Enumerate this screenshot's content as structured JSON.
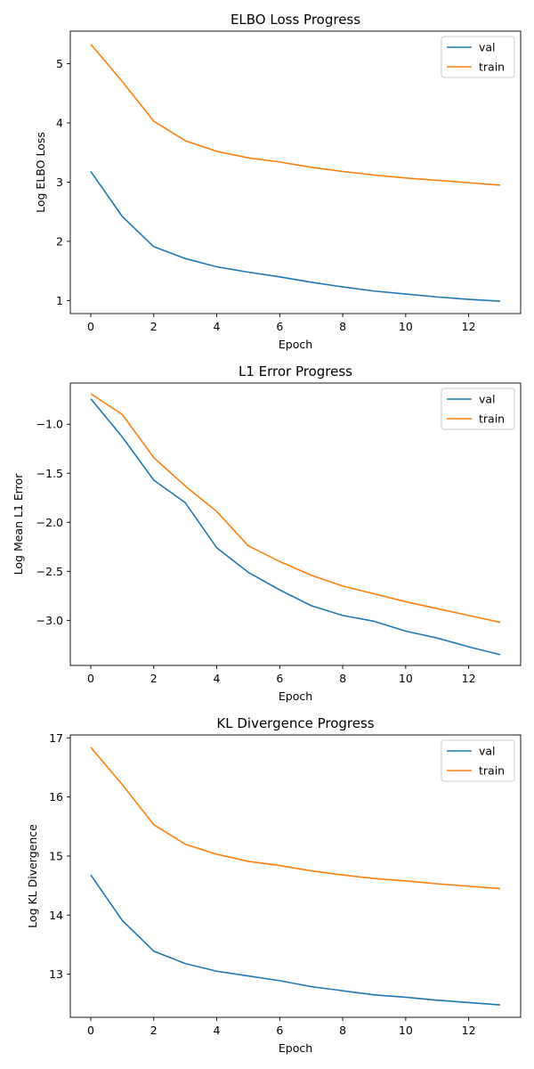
{
  "chart_data": [
    {
      "type": "line",
      "title": "ELBO Loss Progress",
      "xlabel": "Epoch",
      "ylabel": "Log ELBO Loss",
      "x": [
        0,
        1,
        2,
        3,
        4,
        5,
        6,
        7,
        8,
        9,
        10,
        11,
        12,
        13
      ],
      "xlim": [
        -0.65,
        13.65
      ],
      "ylim": [
        0.78,
        5.55
      ],
      "xticks": [
        0,
        2,
        4,
        6,
        8,
        10,
        12
      ],
      "yticks": [
        1,
        2,
        3,
        4,
        5
      ],
      "legend": "top-right",
      "series": [
        {
          "name": "val",
          "color": "#1f77b4",
          "values": [
            3.18,
            2.42,
            1.91,
            1.71,
            1.57,
            1.48,
            1.4,
            1.31,
            1.23,
            1.16,
            1.11,
            1.06,
            1.02,
            0.99
          ]
        },
        {
          "name": "train",
          "color": "#ff7f0e",
          "values": [
            5.33,
            4.7,
            4.03,
            3.7,
            3.52,
            3.41,
            3.34,
            3.25,
            3.18,
            3.12,
            3.07,
            3.03,
            2.99,
            2.95
          ]
        }
      ]
    },
    {
      "type": "line",
      "title": "L1 Error Progress",
      "xlabel": "Epoch",
      "ylabel": "Log Mean L1 Error",
      "x": [
        0,
        1,
        2,
        3,
        4,
        5,
        6,
        7,
        8,
        9,
        10,
        11,
        12,
        13
      ],
      "xlim": [
        -0.65,
        13.65
      ],
      "ylim": [
        -3.46,
        -0.58
      ],
      "xticks": [
        0,
        2,
        4,
        6,
        8,
        10,
        12
      ],
      "yticks": [
        -1.0,
        -1.5,
        -2.0,
        -2.5,
        -3.0
      ],
      "ytick_labels": [
        "−1.0",
        "−1.5",
        "−2.0",
        "−2.5",
        "−3.0"
      ],
      "legend": "top-right",
      "series": [
        {
          "name": "val",
          "color": "#1f77b4",
          "values": [
            -0.74,
            -1.13,
            -1.57,
            -1.8,
            -2.26,
            -2.51,
            -2.69,
            -2.85,
            -2.95,
            -3.01,
            -3.11,
            -3.18,
            -3.27,
            -3.35
          ]
        },
        {
          "name": "train",
          "color": "#ff7f0e",
          "values": [
            -0.69,
            -0.9,
            -1.34,
            -1.63,
            -1.89,
            -2.24,
            -2.4,
            -2.54,
            -2.65,
            -2.73,
            -2.81,
            -2.88,
            -2.95,
            -3.02
          ]
        }
      ]
    },
    {
      "type": "line",
      "title": "KL Divergence Progress",
      "xlabel": "Epoch",
      "ylabel": "Log KL Divergence",
      "x": [
        0,
        1,
        2,
        3,
        4,
        5,
        6,
        7,
        8,
        9,
        10,
        11,
        12,
        13
      ],
      "xlim": [
        -0.65,
        13.65
      ],
      "ylim": [
        12.27,
        17.05
      ],
      "xticks": [
        0,
        2,
        4,
        6,
        8,
        10,
        12
      ],
      "yticks": [
        13,
        14,
        15,
        16,
        17
      ],
      "legend": "top-right",
      "series": [
        {
          "name": "val",
          "color": "#1f77b4",
          "values": [
            14.68,
            13.91,
            13.39,
            13.18,
            13.05,
            12.97,
            12.89,
            12.79,
            12.72,
            12.65,
            12.61,
            12.56,
            12.52,
            12.48
          ]
        },
        {
          "name": "train",
          "color": "#ff7f0e",
          "values": [
            16.84,
            16.21,
            15.53,
            15.2,
            15.03,
            14.91,
            14.84,
            14.75,
            14.68,
            14.62,
            14.58,
            14.53,
            14.49,
            14.45
          ]
        }
      ]
    }
  ]
}
